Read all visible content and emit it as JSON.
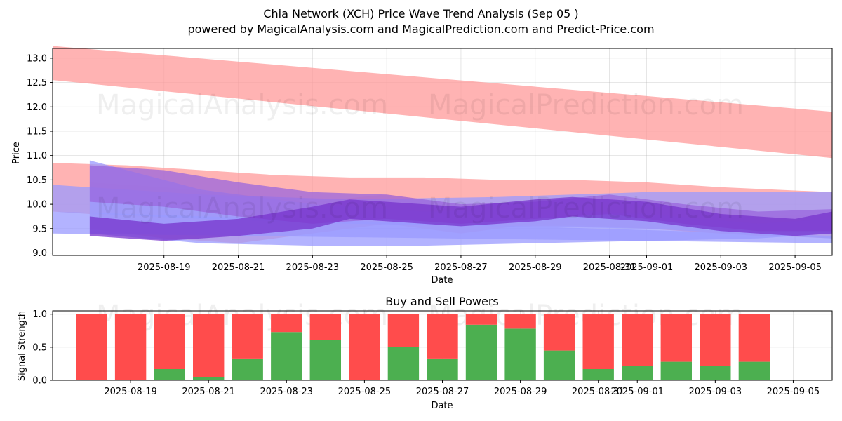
{
  "title": "Chia Network (XCH) Price Wave Trend Analysis (Sep 05 )",
  "subtitle": "powered by MagicalAnalysis.com and MagicalPrediction.com and Predict-Price.com",
  "watermarks": [
    "MagicalAnalysis.com",
    "MagicalPrediction.com"
  ],
  "chart_data": [
    {
      "type": "area",
      "title": "",
      "xlabel": "Date",
      "ylabel": "Price",
      "ylim": [
        8.95,
        13.2
      ],
      "yticks": [
        "9.0",
        "9.5",
        "10.0",
        "10.5",
        "11.0",
        "11.5",
        "12.0",
        "12.5",
        "13.0"
      ],
      "xlim": [
        "2025-08-16",
        "2025-09-06"
      ],
      "xticks": [
        "2025-08-19",
        "2025-08-21",
        "2025-08-23",
        "2025-08-25",
        "2025-08-27",
        "2025-08-29",
        "2025-08-31",
        "2025-09-01",
        "2025-09-03",
        "2025-09-05"
      ],
      "grid": true,
      "bands": [
        {
          "color": "#ff9999",
          "x": [
            "2025-08-16",
            "2025-09-06"
          ],
          "lower": [
            12.55,
            10.95
          ],
          "upper": [
            13.25,
            11.9
          ]
        },
        {
          "color": "#ff9999",
          "x": [
            "2025-08-16",
            "2025-08-18",
            "2025-08-20",
            "2025-08-22",
            "2025-08-24",
            "2025-08-26",
            "2025-08-28",
            "2025-08-30",
            "2025-09-01",
            "2025-09-03",
            "2025-09-06"
          ],
          "lower": [
            9.85,
            9.75,
            9.7,
            9.7,
            9.65,
            9.6,
            9.55,
            9.55,
            9.5,
            9.4,
            9.3
          ],
          "upper": [
            10.85,
            10.8,
            10.7,
            10.6,
            10.55,
            10.55,
            10.5,
            10.5,
            10.45,
            10.35,
            10.25
          ]
        },
        {
          "color": "#ff9999",
          "x": [
            "2025-08-17",
            "2025-08-19",
            "2025-08-21",
            "2025-08-23",
            "2025-08-25",
            "2025-08-27",
            "2025-08-29",
            "2025-08-31",
            "2025-09-02",
            "2025-09-04",
            "2025-09-06"
          ],
          "lower": [
            9.5,
            9.3,
            9.2,
            9.4,
            9.6,
            9.4,
            9.6,
            9.55,
            9.45,
            9.35,
            9.4
          ],
          "upper": [
            10.45,
            10.35,
            10.2,
            10.05,
            10.2,
            10.0,
            9.95,
            10.05,
            9.9,
            9.75,
            9.8
          ]
        },
        {
          "color": "#9999ff",
          "x": [
            "2025-08-16",
            "2025-09-06"
          ],
          "lower": [
            9.4,
            9.2
          ],
          "upper": [
            9.85,
            9.35
          ]
        },
        {
          "color": "#9999ff",
          "x": [
            "2025-08-16",
            "2025-08-20",
            "2025-08-24",
            "2025-08-28",
            "2025-09-01",
            "2025-09-06"
          ],
          "lower": [
            9.85,
            9.7,
            9.6,
            9.55,
            9.5,
            9.3
          ],
          "upper": [
            10.4,
            10.2,
            10.1,
            10.15,
            10.25,
            10.25
          ]
        },
        {
          "color": "#9999ff",
          "x": [
            "2025-08-17",
            "2025-08-20",
            "2025-08-23",
            "2025-08-26",
            "2025-08-29",
            "2025-09-01",
            "2025-09-04",
            "2025-09-06"
          ],
          "lower": [
            9.4,
            9.2,
            9.15,
            9.15,
            9.2,
            9.25,
            9.3,
            9.4
          ],
          "upper": [
            10.9,
            10.3,
            10.0,
            9.85,
            9.9,
            9.8,
            9.6,
            9.7
          ]
        },
        {
          "color": "#9966dd",
          "x": [
            "2025-08-17",
            "2025-08-19",
            "2025-08-21",
            "2025-08-23",
            "2025-08-25",
            "2025-08-27",
            "2025-08-29",
            "2025-08-31",
            "2025-09-02",
            "2025-09-04",
            "2025-09-06"
          ],
          "lower": [
            10.05,
            9.95,
            9.75,
            9.6,
            9.7,
            9.6,
            9.7,
            9.8,
            9.6,
            9.45,
            9.45
          ],
          "upper": [
            10.8,
            10.7,
            10.45,
            10.25,
            10.2,
            10.0,
            10.05,
            10.2,
            10.0,
            9.85,
            9.9
          ]
        },
        {
          "color": "#7733cc",
          "x": [
            "2025-08-17",
            "2025-08-19",
            "2025-08-21",
            "2025-08-23",
            "2025-08-24",
            "2025-08-25",
            "2025-08-27",
            "2025-08-29",
            "2025-08-30",
            "2025-09-01",
            "2025-09-03",
            "2025-09-05",
            "2025-09-06"
          ],
          "lower": [
            9.35,
            9.25,
            9.35,
            9.5,
            9.7,
            9.65,
            9.55,
            9.65,
            9.75,
            9.65,
            9.45,
            9.35,
            9.4
          ],
          "upper": [
            9.75,
            9.6,
            9.7,
            9.95,
            10.1,
            10.05,
            9.95,
            10.1,
            10.15,
            10.05,
            9.8,
            9.7,
            9.85
          ]
        }
      ]
    },
    {
      "type": "bar",
      "title": "Buy and Sell Powers",
      "xlabel": "Date",
      "ylabel": "Signal Strength",
      "ylim": [
        0,
        1.05
      ],
      "yticks": [
        "0.0",
        "0.5",
        "1.0"
      ],
      "xlim": [
        "2025-08-17",
        "2025-09-06"
      ],
      "xticks": [
        "2025-08-19",
        "2025-08-21",
        "2025-08-23",
        "2025-08-25",
        "2025-08-27",
        "2025-08-29",
        "2025-08-31",
        "2025-09-01",
        "2025-09-03",
        "2025-09-05"
      ],
      "grid": true,
      "categories": [
        "2025-08-18",
        "2025-08-19",
        "2025-08-20",
        "2025-08-21",
        "2025-08-22",
        "2025-08-23",
        "2025-08-24",
        "2025-08-25",
        "2025-08-26",
        "2025-08-27",
        "2025-08-28",
        "2025-08-29",
        "2025-08-30",
        "2025-08-31",
        "2025-09-01",
        "2025-09-02",
        "2025-09-03",
        "2025-09-04",
        "2025-09-05"
      ],
      "series": [
        {
          "color": "#4caf50",
          "values": [
            0.0,
            0.0,
            0.17,
            0.05,
            0.33,
            0.73,
            0.61,
            0.0,
            0.5,
            0.33,
            0.84,
            0.78,
            0.45,
            0.17,
            0.22,
            0.28,
            0.22,
            0.28,
            0.0
          ]
        },
        {
          "color": "#ff4c4c",
          "values": [
            1.0,
            1.0,
            0.83,
            0.95,
            0.67,
            0.27,
            0.39,
            1.0,
            0.5,
            0.67,
            0.16,
            0.22,
            0.55,
            0.83,
            0.78,
            0.72,
            0.78,
            0.72,
            0.0
          ]
        }
      ]
    }
  ]
}
